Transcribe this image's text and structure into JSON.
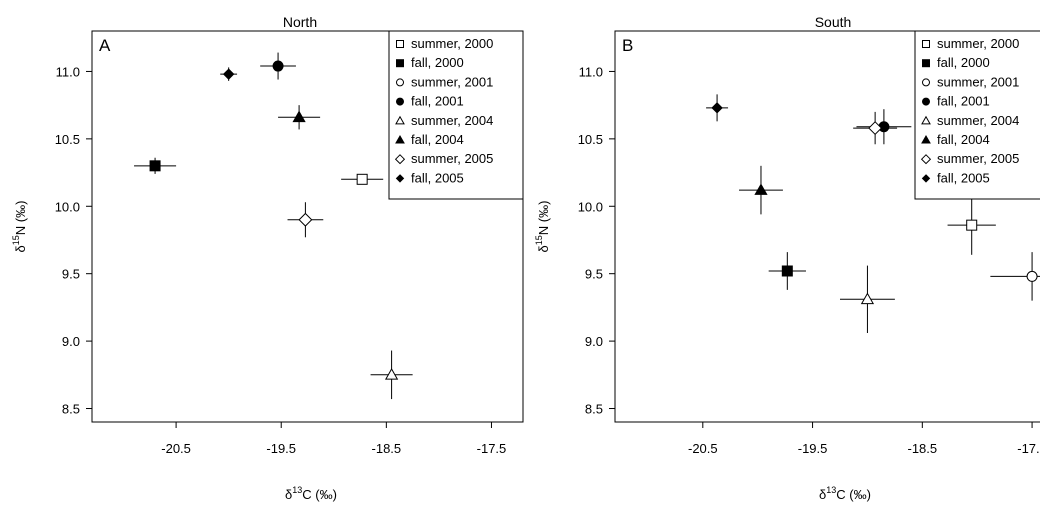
{
  "chart_data": [
    {
      "type": "scatter",
      "panel_letter": "A",
      "title": "North",
      "xlabel_delta": "δ",
      "xlabel_sup": "13",
      "xlabel_rest": "C (‰)",
      "ylabel_delta": "δ",
      "ylabel_sup": "15",
      "ylabel_rest": "N (‰)",
      "xlim": [
        -21.3,
        -17.2
      ],
      "ylim": [
        8.4,
        11.3
      ],
      "xticks": [
        "-20.5",
        "-19.5",
        "-18.5",
        "-17.5"
      ],
      "yticks": [
        "8.5",
        "9.0",
        "9.5",
        "10.0",
        "10.5",
        "11.0"
      ],
      "legend_position": "top-right",
      "series": [
        {
          "name": "summer, 2000",
          "marker": "open-square",
          "x": -18.73,
          "y": 10.2,
          "xerr": 0.2,
          "yerr": 0.03
        },
        {
          "name": "fall, 2000",
          "marker": "filled-square",
          "x": -20.7,
          "y": 10.3,
          "xerr": 0.2,
          "yerr": 0.06
        },
        {
          "name": "summer, 2001",
          "marker": "open-circle",
          "x": null,
          "y": null
        },
        {
          "name": "fall, 2001",
          "marker": "filled-circle",
          "x": -19.53,
          "y": 11.04,
          "xerr": 0.17,
          "yerr": 0.1
        },
        {
          "name": "summer, 2004",
          "marker": "open-triangle",
          "x": -18.45,
          "y": 8.75,
          "xerr": 0.2,
          "yerr": 0.18
        },
        {
          "name": "fall, 2004",
          "marker": "filled-triangle",
          "x": -19.33,
          "y": 10.66,
          "xerr": 0.2,
          "yerr": 0.09
        },
        {
          "name": "summer, 2005",
          "marker": "open-diamond",
          "x": -19.27,
          "y": 9.9,
          "xerr": 0.17,
          "yerr": 0.13
        },
        {
          "name": "fall, 2005",
          "marker": "filled-diamond",
          "x": -20.0,
          "y": 10.98,
          "xerr": 0.08,
          "yerr": 0.05
        }
      ]
    },
    {
      "type": "scatter",
      "panel_letter": "B",
      "title": "South",
      "xlabel_delta": "δ",
      "xlabel_sup": "13",
      "xlabel_rest": "C (‰)",
      "ylabel_delta": "δ",
      "ylabel_sup": "15",
      "ylabel_rest": "N (‰)",
      "xlim": [
        -21.3,
        -17.2
      ],
      "ylim": [
        8.4,
        11.3
      ],
      "xticks": [
        "-20.5",
        "-19.5",
        "-18.5",
        "-17.5"
      ],
      "yticks": [
        "8.5",
        "9.0",
        "9.5",
        "10.0",
        "10.5",
        "11.0"
      ],
      "legend_position": "top-right",
      "series": [
        {
          "name": "summer, 2000",
          "marker": "open-square",
          "x": -18.05,
          "y": 9.86,
          "xerr": 0.22,
          "yerr": 0.22
        },
        {
          "name": "fall, 2000",
          "marker": "filled-square",
          "x": -19.73,
          "y": 9.52,
          "xerr": 0.17,
          "yerr": 0.14
        },
        {
          "name": "summer, 2001",
          "marker": "open-circle",
          "x": -17.5,
          "y": 9.48,
          "xerr": 0.38,
          "yerr": 0.18
        },
        {
          "name": "fall, 2001",
          "marker": "filled-circle",
          "x": -18.85,
          "y": 10.59,
          "xerr": 0.25,
          "yerr": 0.13
        },
        {
          "name": "summer, 2004",
          "marker": "open-triangle",
          "x": -19.0,
          "y": 9.31,
          "xerr": 0.25,
          "yerr": 0.25
        },
        {
          "name": "fall, 2004",
          "marker": "filled-triangle",
          "x": -19.97,
          "y": 10.12,
          "xerr": 0.2,
          "yerr": 0.18
        },
        {
          "name": "summer, 2005",
          "marker": "open-diamond",
          "x": -18.93,
          "y": 10.58,
          "xerr": 0.2,
          "yerr": 0.12
        },
        {
          "name": "fall, 2005",
          "marker": "filled-diamond",
          "x": -20.37,
          "y": 10.73,
          "xerr": 0.1,
          "yerr": 0.1
        }
      ]
    }
  ]
}
